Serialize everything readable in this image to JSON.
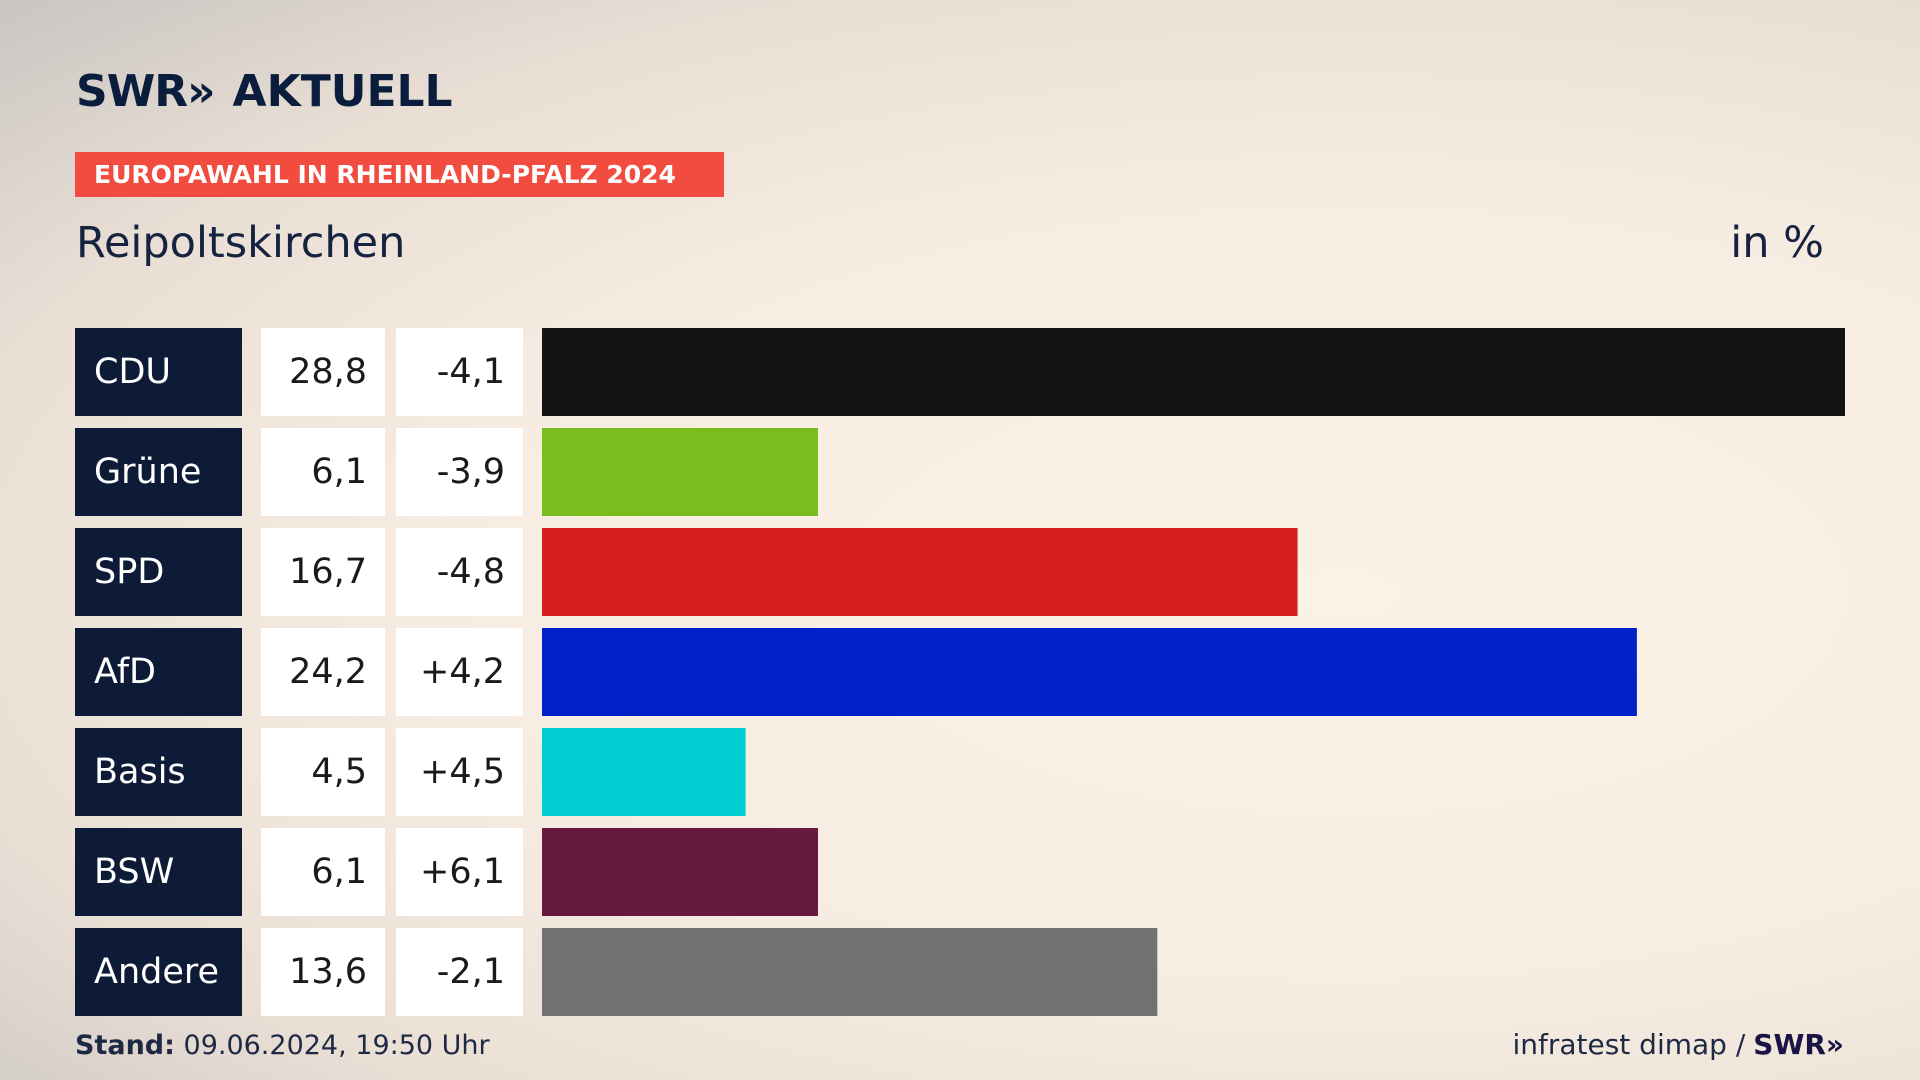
{
  "brand": {
    "logo_text": "SWR",
    "logo_arrows": "»",
    "product": "AKTUELL"
  },
  "banner": "EUROPAWAHL IN RHEINLAND-PFALZ 2024",
  "location": "Reipoltskirchen",
  "unit": "in %",
  "footer": {
    "stand_label": "Stand:",
    "stand_value": "09.06.2024, 19:50 Uhr",
    "source": "infratest dimap /",
    "source_brand": "SWR",
    "source_arrows": "»"
  },
  "colors": {
    "banner": "#f24b3f",
    "label_box": "#0d1b36",
    "value_box": "#ffffff"
  },
  "chart_data": {
    "type": "bar",
    "orientation": "horizontal",
    "categories": [
      "CDU",
      "Grüne",
      "SPD",
      "AfD",
      "Basis",
      "BSW",
      "Andere"
    ],
    "values": [
      28.8,
      6.1,
      16.7,
      24.2,
      4.5,
      6.1,
      13.6
    ],
    "value_labels": [
      "28,8",
      "6,1",
      "16,7",
      "24,2",
      "4,5",
      "6,1",
      "13,6"
    ],
    "changes": [
      -4.1,
      -3.9,
      -4.8,
      4.2,
      4.5,
      6.1,
      -2.1
    ],
    "change_labels": [
      "-4,1",
      "-3,9",
      "-4,8",
      "+4,2",
      "+4,5",
      "+6,1",
      "-2,1"
    ],
    "colors": [
      "#141414",
      "#7abe1e",
      "#d71f1f",
      "#0021c8",
      "#00cdd2",
      "#64193f",
      "#707173"
    ],
    "xlim": [
      0,
      28.8
    ],
    "grid": false,
    "legend": "none"
  }
}
